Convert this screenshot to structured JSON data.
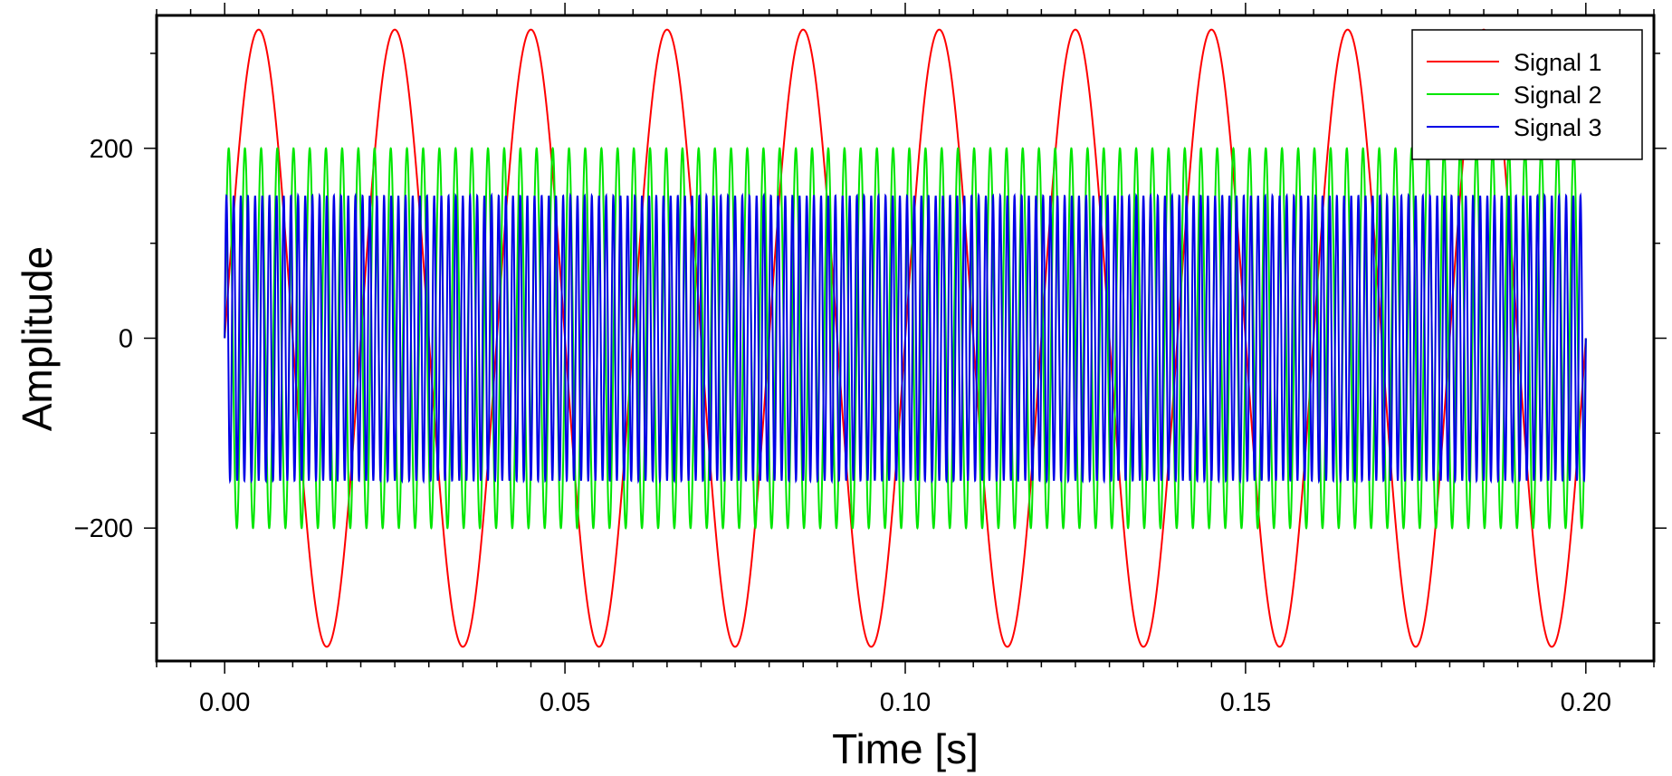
{
  "chart_data": {
    "type": "line",
    "title": "",
    "xlabel": "Time [s]",
    "ylabel": "Amplitude",
    "xlim": [
      -0.01,
      0.21
    ],
    "ylim": [
      -340,
      340
    ],
    "x_ticks": [
      0.0,
      0.05,
      0.1,
      0.15,
      0.2
    ],
    "x_tick_labels": [
      "0.00",
      "0.05",
      "0.10",
      "0.15",
      "0.20"
    ],
    "x_minor_step": 0.005,
    "y_ticks": [
      -200,
      0,
      200
    ],
    "y_tick_labels": [
      "−200",
      "0",
      "200"
    ],
    "y_minor_step": 100,
    "grid": false,
    "legend_position": "top-right",
    "x_range": [
      0,
      0.2
    ],
    "series": [
      {
        "name": "Signal 1",
        "color": "#ff0000",
        "amplitude": 325,
        "frequency_hz": 50,
        "waveform": "sine"
      },
      {
        "name": "Signal 2",
        "color": "#00e600",
        "amplitude": 200,
        "frequency_hz": 420,
        "waveform": "sine"
      },
      {
        "name": "Signal 3",
        "color": "#0000e6",
        "amplitude": 150,
        "frequency_hz": 950,
        "waveform": "sine"
      }
    ]
  }
}
